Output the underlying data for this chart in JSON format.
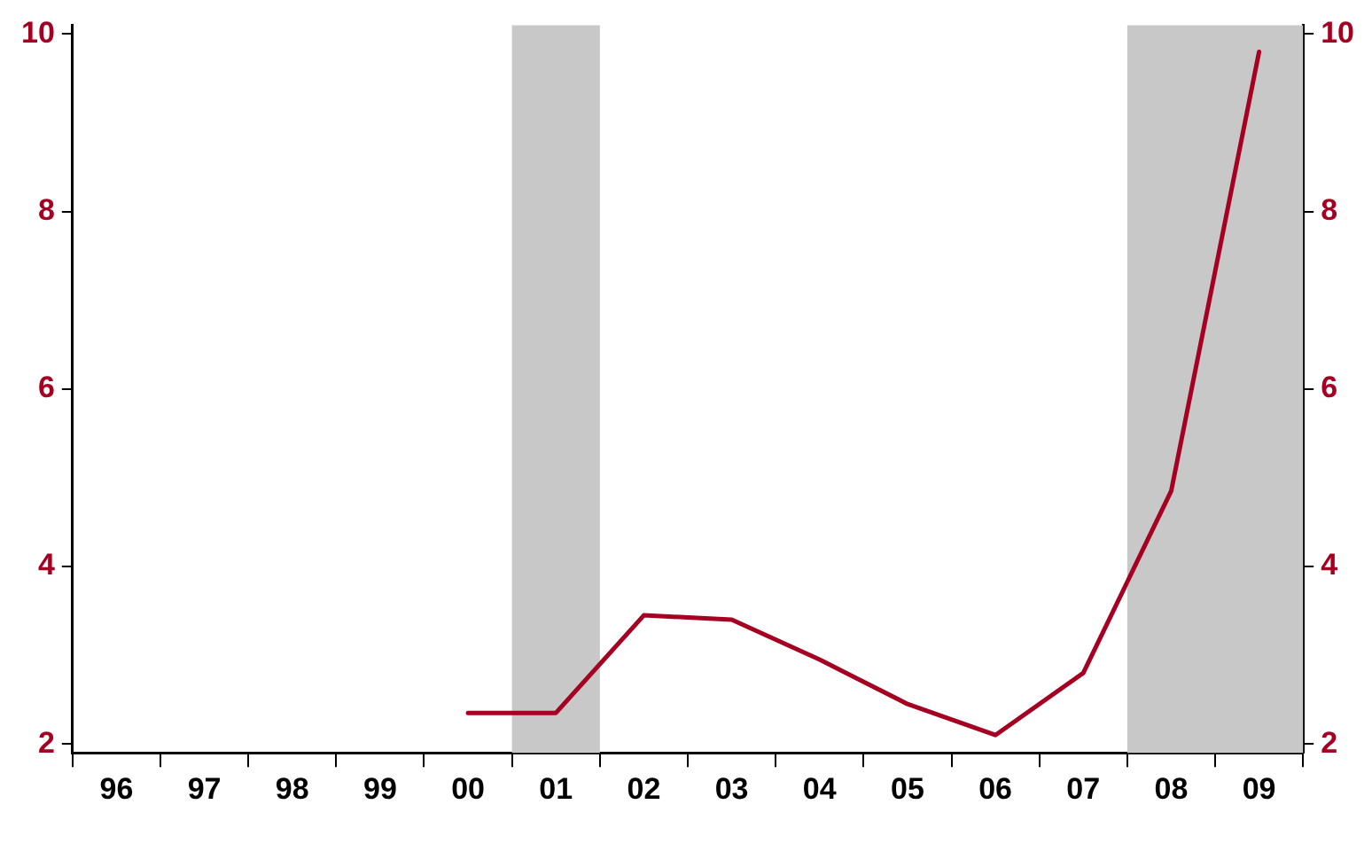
{
  "chart_data": {
    "type": "line",
    "categories": [
      "96",
      "97",
      "98",
      "99",
      "00",
      "01",
      "02",
      "03",
      "04",
      "05",
      "06",
      "07",
      "08",
      "09"
    ],
    "series": [
      {
        "color": "#a50021",
        "values": [
          null,
          null,
          null,
          null,
          2.35,
          2.35,
          3.45,
          3.4,
          2.95,
          2.45,
          2.1,
          2.8,
          4.85,
          9.8
        ]
      }
    ],
    "ylim": [
      1.9,
      10.1
    ],
    "yticks": [
      2,
      4,
      6,
      8,
      10
    ],
    "y2lim": [
      1.9,
      10.1
    ],
    "y2ticks": [
      2,
      4,
      6,
      8,
      10
    ],
    "bands": [
      {
        "axis": "x",
        "from": "01",
        "to": "01",
        "color": "#c8c8c8"
      },
      {
        "axis": "x",
        "from": "08",
        "to": "09",
        "color": "#c8c8c8"
      }
    ],
    "grid": false,
    "legend": false,
    "marker": "none",
    "line_style": "solid"
  }
}
